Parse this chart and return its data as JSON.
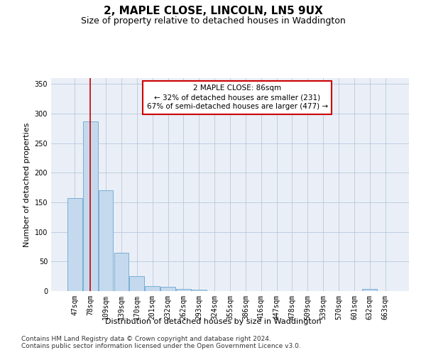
{
  "title": "2, MAPLE CLOSE, LINCOLN, LN5 9UX",
  "subtitle": "Size of property relative to detached houses in Waddington",
  "xlabel": "Distribution of detached houses by size in Waddington",
  "ylabel": "Number of detached properties",
  "categories": [
    "47sqm",
    "78sqm",
    "109sqm",
    "139sqm",
    "170sqm",
    "201sqm",
    "232sqm",
    "262sqm",
    "293sqm",
    "324sqm",
    "355sqm",
    "386sqm",
    "416sqm",
    "447sqm",
    "478sqm",
    "509sqm",
    "539sqm",
    "570sqm",
    "601sqm",
    "632sqm",
    "663sqm"
  ],
  "values": [
    157,
    287,
    170,
    65,
    25,
    9,
    7,
    4,
    3,
    0,
    0,
    0,
    0,
    0,
    0,
    0,
    0,
    0,
    0,
    4,
    0
  ],
  "bar_color": "#c5d9ee",
  "bar_edge_color": "#7aafd4",
  "vline_x_index": 1,
  "vline_color": "#cc0000",
  "annotation_text": "2 MAPLE CLOSE: 86sqm\n← 32% of detached houses are smaller (231)\n67% of semi-detached houses are larger (477) →",
  "annotation_box_color": "#ffffff",
  "annotation_box_edge": "#cc0000",
  "ylim": [
    0,
    360
  ],
  "yticks": [
    0,
    50,
    100,
    150,
    200,
    250,
    300,
    350
  ],
  "bg_color": "#eaeff7",
  "footer1": "Contains HM Land Registry data © Crown copyright and database right 2024.",
  "footer2": "Contains public sector information licensed under the Open Government Licence v3.0.",
  "title_fontsize": 11,
  "subtitle_fontsize": 9,
  "label_fontsize": 8,
  "tick_fontsize": 7,
  "annotation_fontsize": 7.5,
  "footer_fontsize": 6.5
}
